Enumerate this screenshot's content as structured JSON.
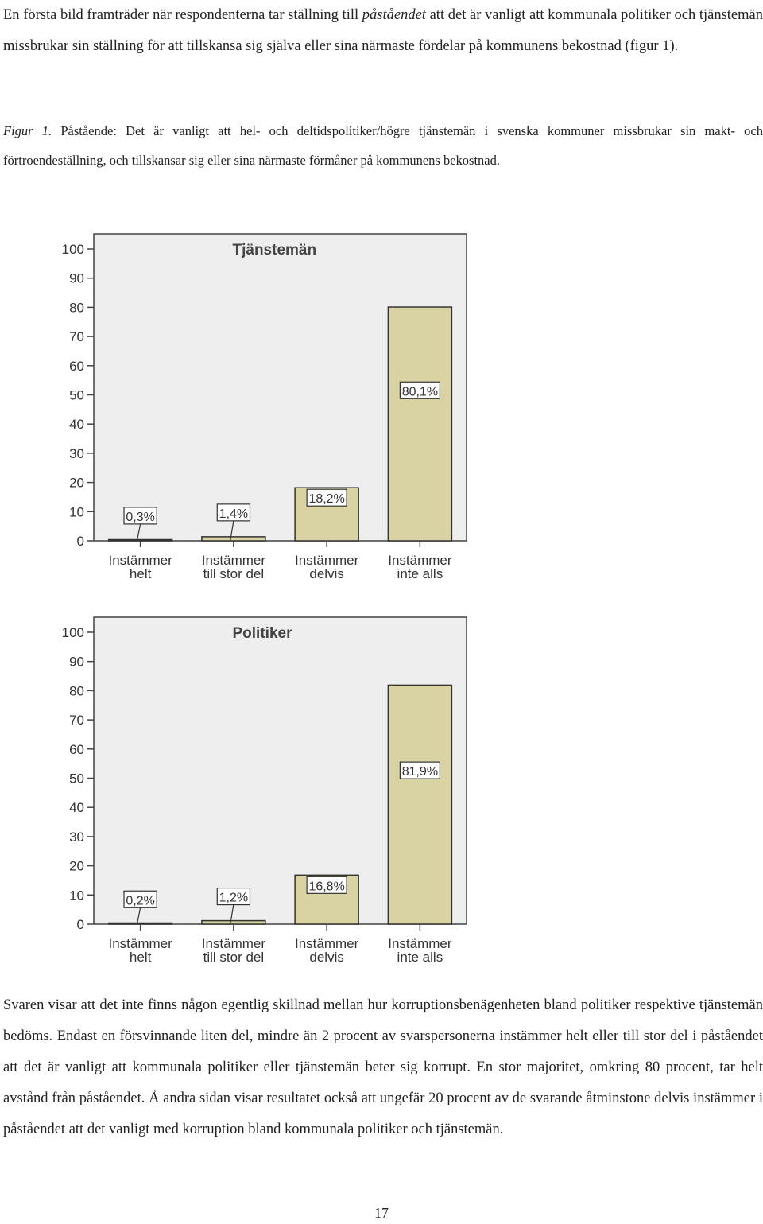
{
  "intro": {
    "part1": "En första bild framträder när respondenterna tar ställning till ",
    "emph": "påståendet",
    "part2": " att det är vanligt att kommunala politiker och tjänstemän missbrukar sin ställning för att tillskansa sig själva eller sina närmaste fördelar på kommunens bekostnad (figur 1)."
  },
  "caption": {
    "label": "Figur 1.",
    "text": " Påstående: Det är vanligt att hel- och deltidspolitiker/högre tjänstemän i svenska kommuner missbrukar sin makt- och förtroendeställning, och tillskansar sig eller sina närmaste förmåner på kommunens bekostnad."
  },
  "chart_data": [
    {
      "type": "bar",
      "title": "Tjänstemän",
      "categories": [
        "Instämmer helt",
        "Instämmer till stor del",
        "Instämmer delvis",
        "Instämmer inte alls"
      ],
      "category_lines": [
        [
          "Instämmer",
          "helt"
        ],
        [
          "Instämmer",
          "till stor del"
        ],
        [
          "Instämmer",
          "delvis"
        ],
        [
          "Instämmer",
          "inte alls"
        ]
      ],
      "values": [
        0.3,
        1.4,
        18.2,
        80.1
      ],
      "data_labels": [
        "0,3%",
        "1,4%",
        "18,2%",
        "80,1%"
      ],
      "ylim": [
        0,
        100
      ],
      "yticks": [
        0,
        10,
        20,
        30,
        40,
        50,
        60,
        70,
        80,
        90,
        100
      ],
      "grid": false,
      "colors": {
        "bar": "#d9d3a3",
        "bar_stroke": "#333333",
        "plot_bg": "#eeeeee"
      }
    },
    {
      "type": "bar",
      "title": "Politiker",
      "categories": [
        "Instämmer helt",
        "Instämmer till stor del",
        "Instämmer delvis",
        "Instämmer inte alls"
      ],
      "category_lines": [
        [
          "Instämmer",
          "helt"
        ],
        [
          "Instämmer",
          "till stor del"
        ],
        [
          "Instämmer",
          "delvis"
        ],
        [
          "Instämmer",
          "inte alls"
        ]
      ],
      "values": [
        0.2,
        1.2,
        16.8,
        81.9
      ],
      "data_labels": [
        "0,2%",
        "1,2%",
        "16,8%",
        "81,9%"
      ],
      "ylim": [
        0,
        100
      ],
      "yticks": [
        0,
        10,
        20,
        30,
        40,
        50,
        60,
        70,
        80,
        90,
        100
      ],
      "grid": false,
      "colors": {
        "bar": "#d9d3a3",
        "bar_stroke": "#333333",
        "plot_bg": "#eeeeee"
      }
    }
  ],
  "outro": "Svaren visar att det inte finns någon egentlig skillnad mellan hur korruptionsbenägenheten bland politiker respektive tjänstemän bedöms. Endast en försvinnande liten del, mindre än 2 procent av svarspersonerna instämmer helt eller till stor del i påståendet att det är vanligt att kommunala politiker eller tjänstemän beter sig korrupt. En stor majoritet, omkring 80 procent, tar helt avstånd från påståendet. Å andra sidan visar resultatet också att ungefär 20 procent av de svarande åtminstone delvis instämmer i påståendet att det vanligt med korruption bland kommunala politiker och tjänstemän.",
  "page_number": "17"
}
